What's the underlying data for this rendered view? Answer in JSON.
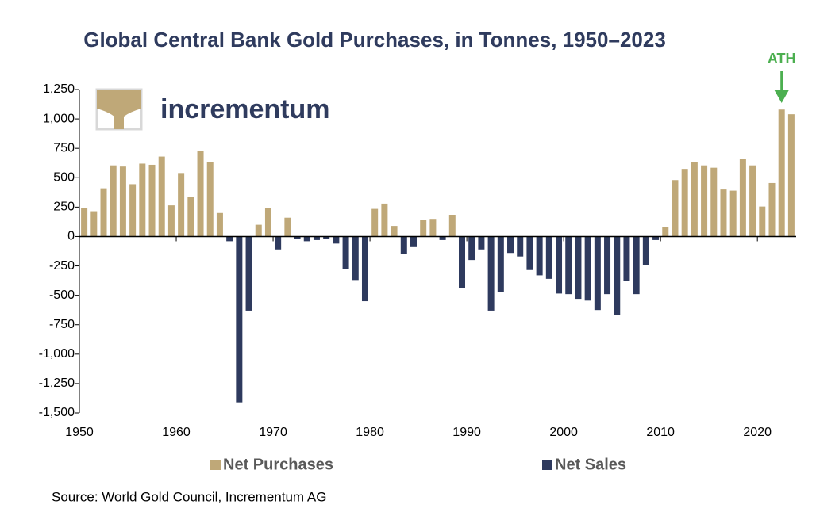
{
  "chart_data": {
    "type": "bar",
    "title": "Global Central Bank Gold Purchases, in Tonnes, 1950–2023",
    "logo": "incrementum",
    "source": "Source: World Gold Council, Incrementum AG",
    "x": [
      1950,
      1951,
      1952,
      1953,
      1954,
      1955,
      1956,
      1957,
      1958,
      1959,
      1960,
      1961,
      1962,
      1963,
      1964,
      1965,
      1966,
      1967,
      1968,
      1969,
      1970,
      1971,
      1972,
      1973,
      1974,
      1975,
      1976,
      1977,
      1978,
      1979,
      1980,
      1981,
      1982,
      1983,
      1984,
      1985,
      1986,
      1987,
      1988,
      1989,
      1990,
      1991,
      1992,
      1993,
      1994,
      1995,
      1996,
      1997,
      1998,
      1999,
      2000,
      2001,
      2002,
      2003,
      2004,
      2005,
      2006,
      2007,
      2008,
      2009,
      2010,
      2011,
      2012,
      2013,
      2014,
      2015,
      2016,
      2017,
      2018,
      2019,
      2020,
      2021,
      2022,
      2023
    ],
    "series": [
      {
        "name": "Net Purchases",
        "color": "#bfa878",
        "values": [
          240,
          215,
          410,
          605,
          595,
          445,
          620,
          610,
          680,
          265,
          540,
          335,
          730,
          635,
          200,
          null,
          null,
          null,
          100,
          240,
          null,
          160,
          null,
          null,
          null,
          null,
          null,
          null,
          null,
          null,
          235,
          280,
          90,
          null,
          null,
          140,
          150,
          null,
          185,
          null,
          null,
          null,
          null,
          null,
          null,
          null,
          null,
          null,
          null,
          null,
          null,
          null,
          null,
          null,
          null,
          null,
          null,
          null,
          null,
          null,
          80,
          480,
          575,
          635,
          605,
          585,
          400,
          390,
          660,
          605,
          255,
          455,
          1080,
          1040
        ]
      },
      {
        "name": "Net Sales",
        "color": "#2e3a5e",
        "values": [
          null,
          null,
          null,
          null,
          null,
          null,
          null,
          null,
          null,
          null,
          null,
          null,
          null,
          null,
          null,
          -40,
          -1410,
          -630,
          null,
          null,
          -110,
          null,
          -20,
          -40,
          -30,
          -20,
          -60,
          -275,
          -370,
          -550,
          null,
          null,
          null,
          -150,
          -90,
          null,
          null,
          -30,
          null,
          -440,
          -200,
          -110,
          -630,
          -475,
          -140,
          -170,
          -285,
          -330,
          -360,
          -485,
          -490,
          -530,
          -545,
          -625,
          -490,
          -670,
          -375,
          -490,
          -240,
          -30,
          null,
          null,
          null,
          null,
          null,
          null,
          null,
          null,
          null,
          null,
          null,
          null,
          null,
          null
        ]
      }
    ],
    "xlim": [
      1950,
      2024
    ],
    "xticks": [
      1950,
      1960,
      1970,
      1980,
      1990,
      2000,
      2010,
      2020
    ],
    "ylim": [
      -1500,
      1250
    ],
    "yticks": [
      {
        "value": 1250,
        "label": "1,250"
      },
      {
        "value": 1000,
        "label": "1,000"
      },
      750,
      500,
      250,
      0,
      -250,
      -500,
      -750,
      {
        "value": -1000,
        "label": "-1,000"
      },
      {
        "value": -1250,
        "label": "-1,250"
      },
      {
        "value": -1500,
        "label": "-1,500"
      }
    ],
    "annotations": [
      {
        "text": "ATH",
        "x": 2022,
        "color": "#4caf50"
      }
    ]
  }
}
